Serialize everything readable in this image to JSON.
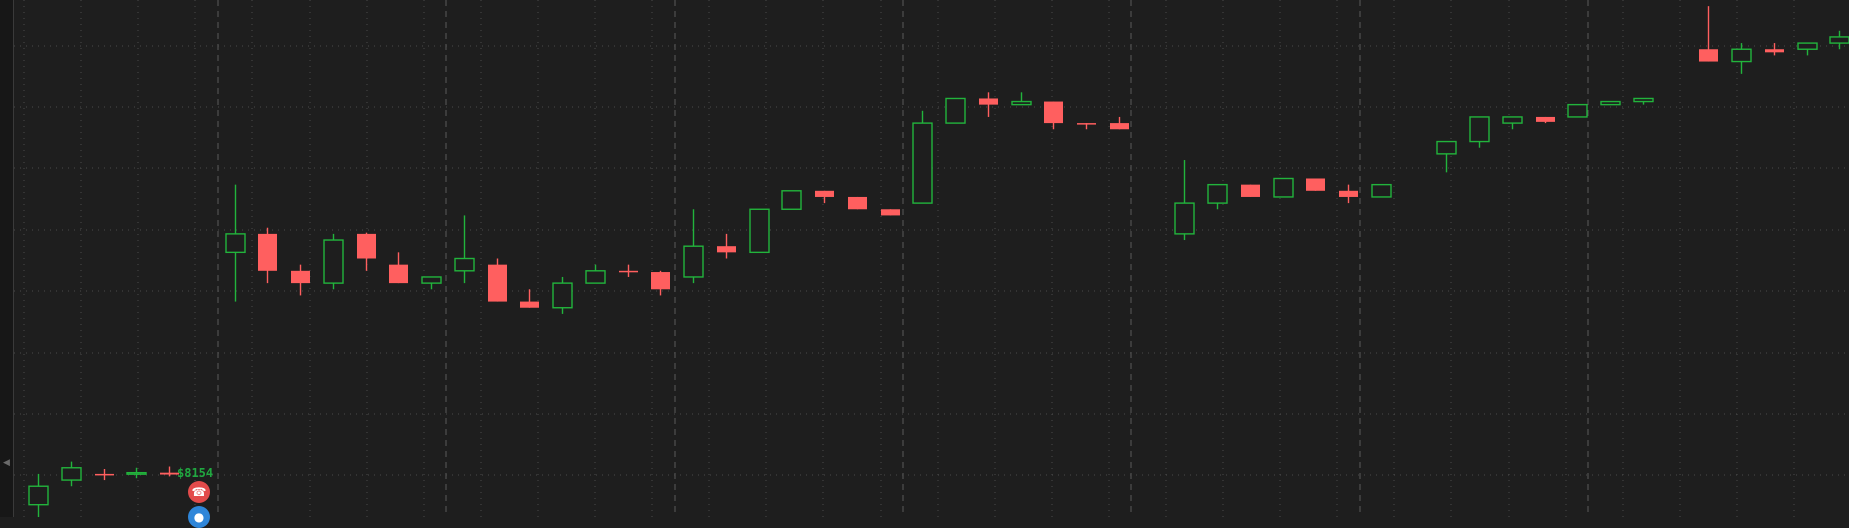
{
  "chart_data": {
    "type": "candlestick",
    "y_range": [
      0,
      8.4
    ],
    "grid": true,
    "colors": {
      "up": "#22b43c",
      "down": "#ff5f5f",
      "background": "#1e1e1e",
      "grid_major": "#5a5a5a",
      "grid_minor": "#4a4a4a"
    },
    "candles": [
      {
        "open": 0.2,
        "high": 0.7,
        "low": 0.0,
        "close": 0.5
      },
      {
        "open": 0.6,
        "high": 0.9,
        "low": 0.5,
        "close": 0.8
      },
      {
        "open": 0.7,
        "high": 0.78,
        "low": 0.6,
        "close": 0.68
      },
      {
        "open": 0.7,
        "high": 0.8,
        "low": 0.63,
        "close": 0.72
      },
      {
        "open": 0.72,
        "high": 0.82,
        "low": 0.66,
        "close": 0.69
      },
      {
        "open": null,
        "high": null,
        "low": null,
        "close": null
      },
      {
        "open": 4.3,
        "high": 5.4,
        "low": 3.5,
        "close": 4.6
      },
      {
        "open": 4.6,
        "high": 4.7,
        "low": 3.8,
        "close": 4.0
      },
      {
        "open": 4.0,
        "high": 4.1,
        "low": 3.6,
        "close": 3.8
      },
      {
        "open": 3.8,
        "high": 4.6,
        "low": 3.7,
        "close": 4.5
      },
      {
        "open": 4.6,
        "high": 4.62,
        "low": 4.0,
        "close": 4.2
      },
      {
        "open": 4.1,
        "high": 4.3,
        "low": 3.8,
        "close": 3.8
      },
      {
        "open": 3.8,
        "high": 3.9,
        "low": 3.7,
        "close": 3.9
      },
      {
        "open": 4.0,
        "high": 4.9,
        "low": 3.8,
        "close": 4.2
      },
      {
        "open": 4.1,
        "high": 4.2,
        "low": 3.5,
        "close": 3.5
      },
      {
        "open": 3.5,
        "high": 3.7,
        "low": 3.4,
        "close": 3.4
      },
      {
        "open": 3.4,
        "high": 3.9,
        "low": 3.3,
        "close": 3.8
      },
      {
        "open": 3.8,
        "high": 4.1,
        "low": 3.8,
        "close": 4.0
      },
      {
        "open": 4.0,
        "high": 4.1,
        "low": 3.9,
        "close": 3.98
      },
      {
        "open": 3.98,
        "high": 4.0,
        "low": 3.6,
        "close": 3.7
      },
      {
        "open": 3.9,
        "high": 5.0,
        "low": 3.8,
        "close": 4.4
      },
      {
        "open": 4.4,
        "high": 4.6,
        "low": 4.2,
        "close": 4.3
      },
      {
        "open": 4.3,
        "high": 5.0,
        "low": 4.3,
        "close": 5.0
      },
      {
        "open": 5.0,
        "high": 5.3,
        "low": 5.0,
        "close": 5.3
      },
      {
        "open": 5.3,
        "high": 5.3,
        "low": 5.1,
        "close": 5.2
      },
      {
        "open": 5.2,
        "high": 5.2,
        "low": 5.0,
        "close": 5.0
      },
      {
        "open": 5.0,
        "high": 5.0,
        "low": 4.9,
        "close": 4.9
      },
      {
        "open": 5.1,
        "high": 6.6,
        "low": 5.1,
        "close": 6.4
      },
      {
        "open": 6.4,
        "high": 6.8,
        "low": 6.4,
        "close": 6.8
      },
      {
        "open": 6.8,
        "high": 6.9,
        "low": 6.5,
        "close": 6.7
      },
      {
        "open": 6.7,
        "high": 6.9,
        "low": 6.7,
        "close": 6.75
      },
      {
        "open": 6.75,
        "high": 6.75,
        "low": 6.3,
        "close": 6.4
      },
      {
        "open": 6.4,
        "high": 6.4,
        "low": 6.3,
        "close": 6.38
      },
      {
        "open": 6.4,
        "high": 6.5,
        "low": 6.3,
        "close": 6.3
      },
      {
        "open": null,
        "high": null,
        "low": null,
        "close": null
      },
      {
        "open": 4.6,
        "high": 5.8,
        "low": 4.5,
        "close": 5.1
      },
      {
        "open": 5.1,
        "high": 5.4,
        "low": 5.0,
        "close": 5.4
      },
      {
        "open": 5.4,
        "high": 5.4,
        "low": 5.2,
        "close": 5.2
      },
      {
        "open": 5.2,
        "high": 5.5,
        "low": 5.2,
        "close": 5.5
      },
      {
        "open": 5.5,
        "high": 5.5,
        "low": 5.3,
        "close": 5.3
      },
      {
        "open": 5.3,
        "high": 5.4,
        "low": 5.1,
        "close": 5.2
      },
      {
        "open": 5.2,
        "high": 5.4,
        "low": 5.2,
        "close": 5.4
      },
      {
        "open": null,
        "high": null,
        "low": null,
        "close": null
      },
      {
        "open": 5.9,
        "high": 6.1,
        "low": 5.6,
        "close": 6.1
      },
      {
        "open": 6.1,
        "high": 6.5,
        "low": 6.0,
        "close": 6.5
      },
      {
        "open": 6.4,
        "high": 6.5,
        "low": 6.3,
        "close": 6.5
      },
      {
        "open": 6.5,
        "high": 6.5,
        "low": 6.4,
        "close": 6.42
      },
      {
        "open": 6.5,
        "high": 6.7,
        "low": 6.5,
        "close": 6.7
      },
      {
        "open": 6.7,
        "high": 6.75,
        "low": 6.7,
        "close": 6.75
      },
      {
        "open": 6.75,
        "high": 6.8,
        "low": 6.7,
        "close": 6.8
      },
      {
        "open": null,
        "high": null,
        "low": null,
        "close": null
      },
      {
        "open": 7.6,
        "high": 8.3,
        "low": 7.4,
        "close": 7.4
      },
      {
        "open": 7.4,
        "high": 7.7,
        "low": 7.2,
        "close": 7.6
      },
      {
        "open": 7.6,
        "high": 7.7,
        "low": 7.5,
        "close": 7.55
      },
      {
        "open": 7.6,
        "high": 7.7,
        "low": 7.5,
        "close": 7.7
      },
      {
        "open": 7.7,
        "high": 7.9,
        "low": 7.6,
        "close": 7.8
      },
      {
        "open": 7.85,
        "high": 7.9,
        "low": 7.8,
        "close": 7.9
      },
      {
        "open": 7.9,
        "high": 7.9,
        "low": 7.8,
        "close": 7.8
      },
      {
        "open": 7.5,
        "high": 8.0,
        "low": 7.3,
        "close": 7.8
      }
    ]
  },
  "price_marker": {
    "text": "$8154"
  },
  "icons": {
    "alert": "phone-icon",
    "info": "dot-icon"
  }
}
